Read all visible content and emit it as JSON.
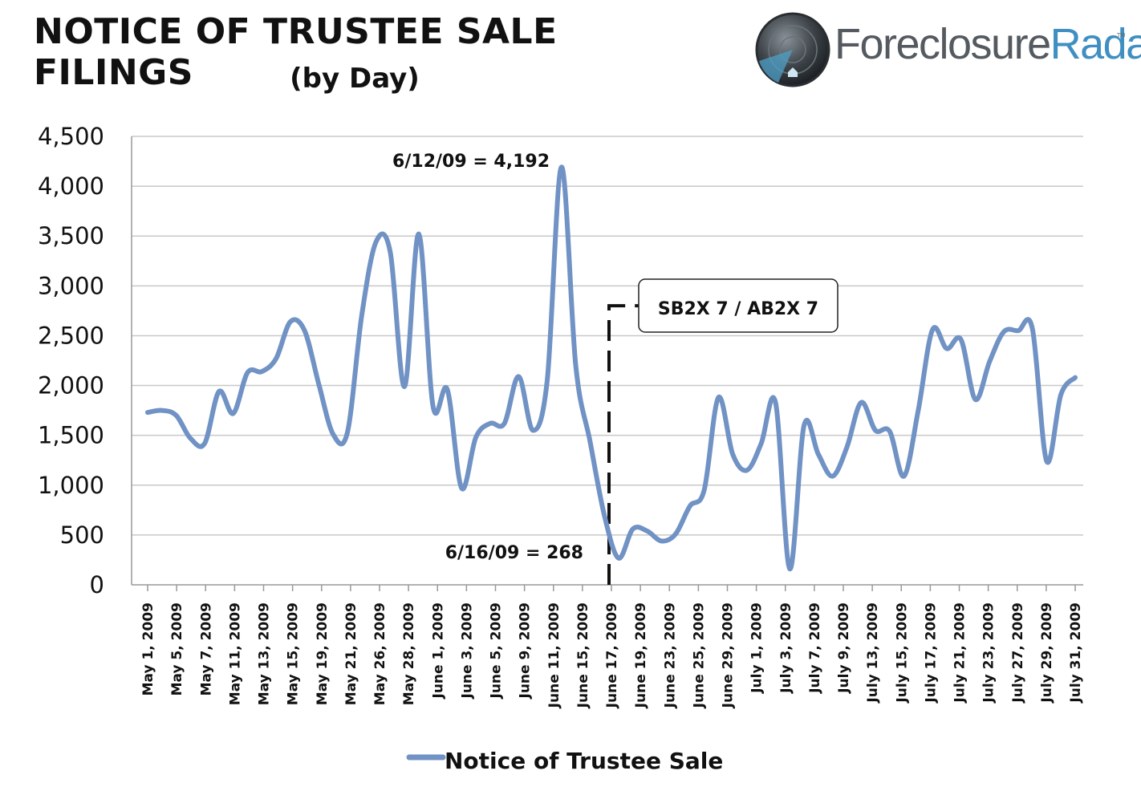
{
  "chart_data": {
    "type": "line",
    "title": "NOTICE OF TRUSTEE SALE FILINGS",
    "subtitle": "(by Day)",
    "xlabel": "",
    "ylabel": "",
    "ylim": [
      0,
      4500
    ],
    "yticks": [
      "0",
      "500",
      "1,000",
      "1,500",
      "2,000",
      "2,500",
      "3,000",
      "3,500",
      "4,000",
      "4,500"
    ],
    "grid": "horizontal",
    "legend_position": "bottom",
    "x_tick_labels": [
      "May 1, 2009",
      "May 5, 2009",
      "May 7, 2009",
      "May 11, 2009",
      "May 13, 2009",
      "May 15, 2009",
      "May 19, 2009",
      "May 21, 2009",
      "May 26, 2009",
      "May 28, 2009",
      "June 1, 2009",
      "June 3, 2009",
      "June 5, 2009",
      "June 9, 2009",
      "June 11, 2009",
      "June 15, 2009",
      "June 17, 2009",
      "June 19, 2009",
      "June 23, 2009",
      "June 25, 2009",
      "June 29, 2009",
      "July 1, 2009",
      "July 3, 2009",
      "July 7, 2009",
      "July 9, 2009",
      "July 13, 2009",
      "July 15, 2009",
      "July 17, 2009",
      "July 21, 2009",
      "July 23, 2009",
      "July 27, 2009",
      "July 29, 2009",
      "July 31, 2009"
    ],
    "series": [
      {
        "name": "Notice of Trustee Sale",
        "color": "#7092c4",
        "values": [
          1730,
          1750,
          1700,
          1470,
          1420,
          1940,
          1720,
          2130,
          2140,
          2270,
          2640,
          2550,
          2010,
          1510,
          1530,
          2700,
          3440,
          3340,
          1990,
          3520,
          1790,
          1960,
          970,
          1480,
          1620,
          1620,
          2090,
          1550,
          2050,
          4192,
          2200,
          1440,
          700,
          268,
          560,
          540,
          440,
          510,
          790,
          950,
          1880,
          1310,
          1150,
          1420,
          1830,
          160,
          1600,
          1310,
          1090,
          1380,
          1830,
          1550,
          1540,
          1090,
          1750,
          2560,
          2370,
          2460,
          1860,
          2240,
          2540,
          2550,
          2570,
          1240,
          1910,
          2080
        ],
        "start_tick_index": 0,
        "end_tick_index": 32
      }
    ],
    "annotations": [
      {
        "text": "6/12/09 = 4,192"
      },
      {
        "text": "6/16/09 = 268"
      },
      {
        "text": "SB2X 7 / AB2X 7",
        "marker_tick": "June 17, 2009",
        "style": "dashed-vertical-line"
      }
    ]
  },
  "logo": {
    "text_part1": "Foreclosure",
    "text_part2": "Radar",
    "tm": "TM",
    "icon": "radar-house-icon",
    "color_dark": "#555a60",
    "color_accent": "#3f8fc2"
  }
}
